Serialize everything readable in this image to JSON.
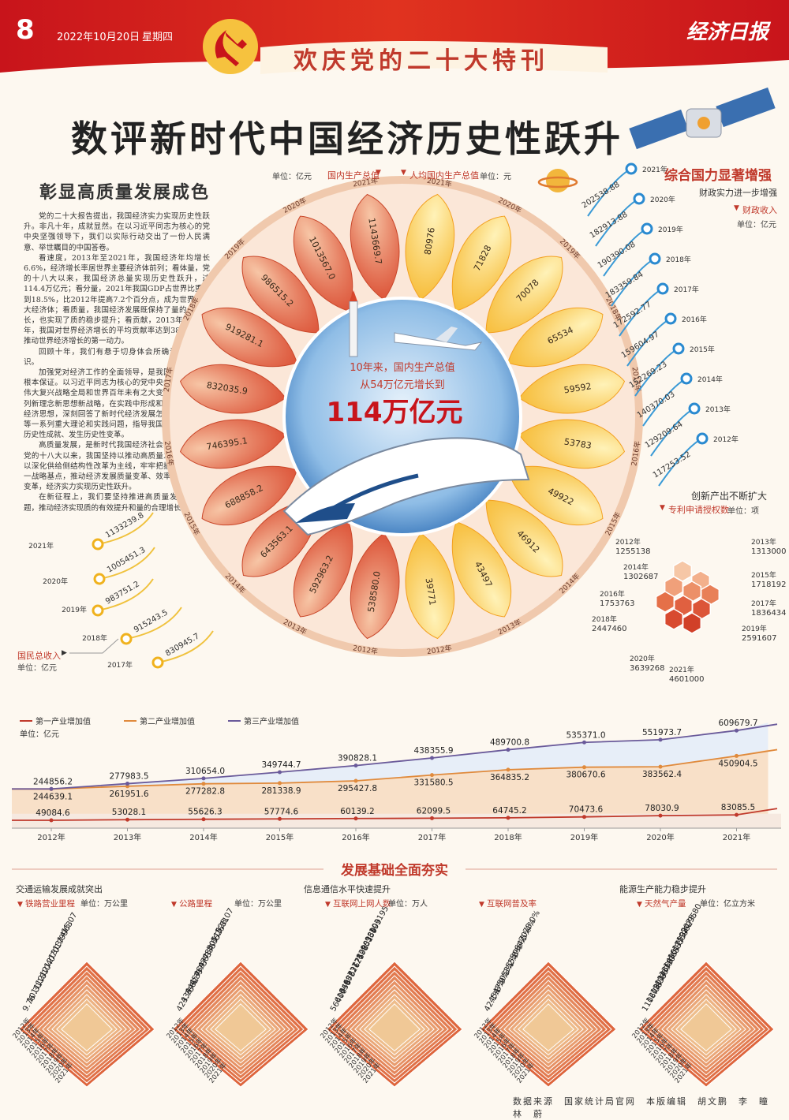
{
  "header": {
    "page_number": "8",
    "date": "2022年10月20日",
    "weekday": "星期四",
    "special_title": "欢庆党的二十大特刊",
    "newspaper": "经济日报"
  },
  "main_title": "数评新时代中国经济历史性跃升",
  "subheading": "彰显高质量发展成色",
  "article": [
    "党的二十大报告提出，我国经济实力实现历史性跃升。非凡十年，成就显然。在以习近平同志为核心的党中央坚强领导下，我们以实际行动交出了一份人民满意、举世瞩目的中国答卷。",
    "看速度，2013年至2021年，我国经济年均增长6.6%，经济增长率居世界主要经济体前列；看体量，党的十八大以来，我国经济总量实现历史性跃升，达114.4万亿元；看分量，2021年我国GDP占世界比重达到18.5%，比2012年提高7.2个百分点，成为世界第二大经济体；看质量，我国经济发展既保持了量的合理增长，也实现了质的稳步提升；看贡献，2013年至2021年，我国对世界经济增长的平均贡献率达到38.6%，是推动世界经济增长的第一动力。",
    "回顾十年，我们有悬于切身体会所确认的深刻认识。",
    "加强党对经济工作的全面领导，是我国经济发展的根本保证。以习近平同志为核心的党中央统筹中华民族伟大复兴战略全局和世界百年未有之大变局，提出一系列新理念新思想新战略，在实践中形成和发展了习近平经济思想，深刻回答了新时代经济发展怎么看、怎么干等一系列重大理论和实践问题，指导我国经济发展取得历史性成就、发生历史性变革。",
    "高质量发展，是新时代我国经济社会发展的主题。党的十八大以来，我国坚持以推动高质量发展为主题，以深化供给侧结构性改革为主线，牢牢把握扩大内需这一战略基点，推动经济发展质量变革、效率变革、动力变革，经济实力实现历史性跃升。",
    "在新征程上，我们要坚持推进高质量发展这个主题，推动经济实现质的有效提升和量的合理增长。"
  ],
  "gdp": {
    "unit_label": "单位：亿元",
    "title": "国内生产总值",
    "years": [
      "2012年",
      "2013年",
      "2014年",
      "2015年",
      "2016年",
      "2017年",
      "2018年",
      "2019年",
      "2020年",
      "2021年"
    ],
    "values": [
      "538580.0",
      "592963.2",
      "643563.1",
      "688858.2",
      "746395.1",
      "832035.9",
      "919281.1",
      "986515.2",
      "1013567.0",
      "1143669.7"
    ]
  },
  "per_capita": {
    "title": "人均国内生产总值",
    "unit_label": "单位：元",
    "years": [
      "2012年",
      "2013年",
      "2014年",
      "2015年",
      "2016年",
      "2017年",
      "2018年",
      "2019年",
      "2020年",
      "2021年"
    ],
    "values": [
      "39771",
      "43497",
      "46912",
      "49922",
      "53783",
      "59592",
      "65534",
      "70078",
      "71828",
      "80976"
    ]
  },
  "center": {
    "line1": "10年来，国内生产总值",
    "line2": "从54万亿元增长到",
    "big": "114万亿元"
  },
  "national_income": {
    "title": "国民总收入",
    "unit": "单位：亿元",
    "years": [
      "2021年",
      "2020年",
      "2019年",
      "2018年",
      "2017年"
    ],
    "values": [
      "1133239.8",
      "1005451.3",
      "983751.2",
      "915243.5",
      "830945.7"
    ]
  },
  "fiscal": {
    "heading": "综合国力显著增强",
    "subheading": "财政实力进一步增强",
    "title": "财政收入",
    "unit": "单位：亿元",
    "years": [
      "2021年",
      "2020年",
      "2019年",
      "2018年",
      "2017年",
      "2016年",
      "2015年",
      "2014年",
      "2013年",
      "2012年"
    ],
    "values": [
      "202538.88",
      "182913.88",
      "190390.08",
      "183359.84",
      "172592.77",
      "159604.97",
      "152269.23",
      "140370.03",
      "129209.64",
      "117253.52"
    ]
  },
  "patents": {
    "heading": "创新产出不断扩大",
    "title": "专利申请授权数",
    "unit": "单位：项",
    "items": [
      {
        "year": "2012年",
        "value": "1255138"
      },
      {
        "year": "2013年",
        "value": "1313000"
      },
      {
        "year": "2014年",
        "value": "1302687"
      },
      {
        "year": "2015年",
        "value": "1718192"
      },
      {
        "year": "2016年",
        "value": "1753763"
      },
      {
        "year": "2017年",
        "value": "1836434"
      },
      {
        "year": "2018年",
        "value": "2447460"
      },
      {
        "year": "2019年",
        "value": "2591607"
      },
      {
        "year": "2020年",
        "value": "3639268"
      },
      {
        "year": "2021年",
        "value": "4601000"
      }
    ]
  },
  "chart_data": {
    "type": "line",
    "title": "",
    "unit": "单位：亿元",
    "legend": [
      "第一产业增加值",
      "第二产业增加值",
      "第三产业增加值"
    ],
    "x": [
      "2012年",
      "2013年",
      "2014年",
      "2015年",
      "2016年",
      "2017年",
      "2018年",
      "2019年",
      "2020年",
      "2021年"
    ],
    "series": [
      {
        "name": "第一产业增加值",
        "values": [
          49084.6,
          53028.1,
          55626.3,
          57774.6,
          60139.2,
          62099.5,
          64745.2,
          70473.6,
          78030.9,
          83085.5
        ],
        "labels": [
          "49084.6",
          "53028.1",
          "55626.3",
          "57774.6",
          "60139.2",
          "62099.5",
          "64745.2",
          "70473.6",
          "78030.9",
          "83085.5"
        ]
      },
      {
        "name": "第二产业增加值",
        "values": [
          244639.1,
          261951.6,
          277282.8,
          281338.9,
          295427.8,
          331580.5,
          364835.2,
          380670.6,
          383562.4,
          450904.5
        ],
        "labels": [
          "244639.1",
          "261951.6",
          "277282.8",
          "281338.9",
          "295427.8",
          "331580.5",
          "364835.2",
          "380670.6",
          "383562.4",
          "450904.5"
        ]
      },
      {
        "name": "第三产业增加值",
        "values": [
          244856.2,
          277983.5,
          310654.0,
          349744.7,
          390828.1,
          438355.9,
          489700.8,
          535371.0,
          551973.7,
          609679.7
        ],
        "labels": [
          "244856.2",
          "277983.5",
          "310654.0",
          "349744.7",
          "390828.1",
          "438355.9",
          "489700.8",
          "535371.0",
          "551973.7",
          "609679.7"
        ]
      }
    ],
    "colors": [
      "#c0392b",
      "#e08a3c",
      "#6a5a9a"
    ]
  },
  "foundation": {
    "heading": "发展基础全面夯实",
    "groups": [
      {
        "title": "交通运输发展成就突出",
        "unit": "",
        "charts": [
          {
            "name": "铁路营业里程",
            "unit": "单位：万公里",
            "values": [
              "9.76",
              "10.31",
              "11.18",
              "12.10",
              "12.40",
              "12.70",
              "13.17",
              "13.99",
              "14.63",
              "15.07"
            ]
          },
          {
            "name": "公路里程",
            "unit": "单位：万公里",
            "values": [
              "423.75",
              "435.62",
              "446.39",
              "457.73",
              "469.63",
              "477.35",
              "484.65",
              "501.25",
              "519.81",
              "528.07"
            ]
          }
        ]
      },
      {
        "title": "信息通信水平快速提升",
        "unit": "",
        "charts": [
          {
            "name": "互联网上网人数",
            "unit": "单位：万人",
            "values": [
              "56400",
              "61758",
              "64875",
              "68826",
              "73125",
              "77198",
              "82851",
              "90359",
              "98899",
              "103195"
            ]
          },
          {
            "name": "互联网普及率",
            "unit": "",
            "values": [
              "42.1%",
              "45.8%",
              "47.9%",
              "50.3%",
              "53.2%",
              "55.8%",
              "59.6%",
              "64.5%",
              "70.4%",
              "73.0%"
            ]
          }
        ]
      },
      {
        "title": "能源生产能力稳步提升",
        "unit": "",
        "charts": [
          {
            "name": "天然气产量",
            "unit": "单位：亿立方米",
            "values": [
              "1106.08",
              "1208.58",
              "1301.57",
              "1346.10",
              "1368.65",
              "1480.35",
              "1601.59",
              "1753.62",
              "1924.95",
              "2075.80"
            ]
          }
        ]
      }
    ],
    "years": [
      "2012年",
      "2013年",
      "2014年",
      "2015年",
      "2016年",
      "2017年",
      "2018年",
      "2019年",
      "2020年",
      "2021年"
    ]
  },
  "credit": "数据来源　国家统计局官网　本版编辑　胡文鹏　李　瞳　林　蔚"
}
